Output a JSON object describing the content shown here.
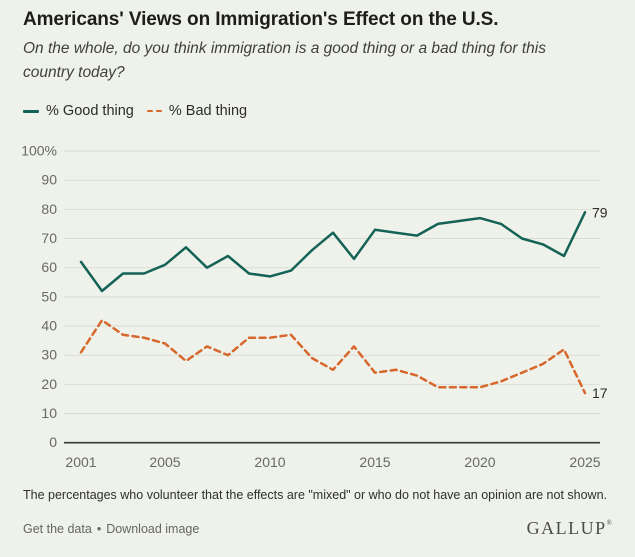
{
  "header": {
    "title": "Americans' Views on Immigration's Effect on the U.S.",
    "subtitle_line1": "On the whole, do you think immigration is a good thing or a bad thing for this",
    "subtitle_line2": "country today?"
  },
  "chart_data": {
    "type": "line",
    "x": [
      2001,
      2002,
      2003,
      2004,
      2005,
      2006,
      2007,
      2008,
      2009,
      2010,
      2011,
      2012,
      2013,
      2014,
      2015,
      2016,
      2017,
      2018,
      2019,
      2020,
      2021,
      2022,
      2023,
      2024,
      2025
    ],
    "series": [
      {
        "id": "good",
        "name": "% Good thing",
        "color": "#156357",
        "line_style": "solid",
        "values": [
          62,
          52,
          58,
          58,
          61,
          67,
          60,
          64,
          58,
          57,
          59,
          66,
          72,
          63,
          73,
          72,
          71,
          75,
          76,
          77,
          75,
          70,
          68,
          64,
          79
        ],
        "end_label": "79"
      },
      {
        "id": "bad",
        "name": "% Bad thing",
        "color": "#d7672c",
        "line_style": "dashed",
        "values": [
          31,
          42,
          37,
          36,
          34,
          28,
          33,
          30,
          36,
          36,
          37,
          29,
          25,
          33,
          24,
          25,
          23,
          19,
          19,
          19,
          21,
          24,
          27,
          32,
          17
        ],
        "end_label": "17"
      }
    ],
    "x_ticks": [
      2001,
      2005,
      2010,
      2015,
      2020,
      2025
    ],
    "y_ticks": [
      0,
      10,
      20,
      30,
      40,
      50,
      60,
      70,
      80,
      90,
      100
    ],
    "y_top_label": "100%",
    "ylim": [
      0,
      100
    ],
    "grid": true,
    "legend_position": "top-left"
  },
  "footnote": "The percentages who volunteer that the effects are \"mixed\" or who do not have an opinion are not shown.",
  "footer": {
    "links": [
      "Get the data",
      "Download image"
    ],
    "separator": "•",
    "brand": "GALLUP",
    "brand_mark": "®"
  },
  "colors": {
    "background": "#eef2ea",
    "good_line": "#156357",
    "bad_line": "#d7672c",
    "gridline": "#d9ddd4",
    "axis": "#3a3b35",
    "tick_text": "#686a62"
  }
}
